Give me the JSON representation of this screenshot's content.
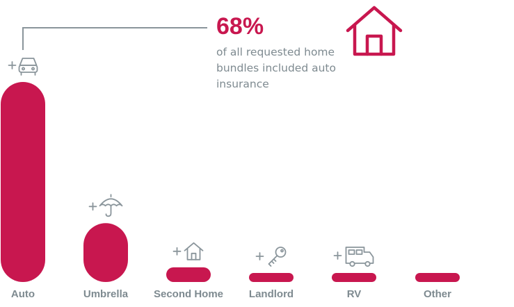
{
  "callout": {
    "stat": "68%",
    "text": "of all requested home bundles included auto insurance"
  },
  "colors": {
    "bar": "#c8174f",
    "icon": "#8a959b",
    "label": "#7e8a90",
    "accent": "#c8174f"
  },
  "chart_data": {
    "type": "bar",
    "categories": [
      "Auto",
      "Umbrella",
      "Second Home",
      "Landlord",
      "RV",
      "Other"
    ],
    "values": [
      68,
      20,
      5,
      3,
      1,
      2
    ],
    "unit": "%",
    "icons": [
      "car-icon",
      "umbrella-icon",
      "house-icon",
      "key-icon",
      "rv-icon",
      ""
    ],
    "grid": false,
    "legend": "none"
  }
}
